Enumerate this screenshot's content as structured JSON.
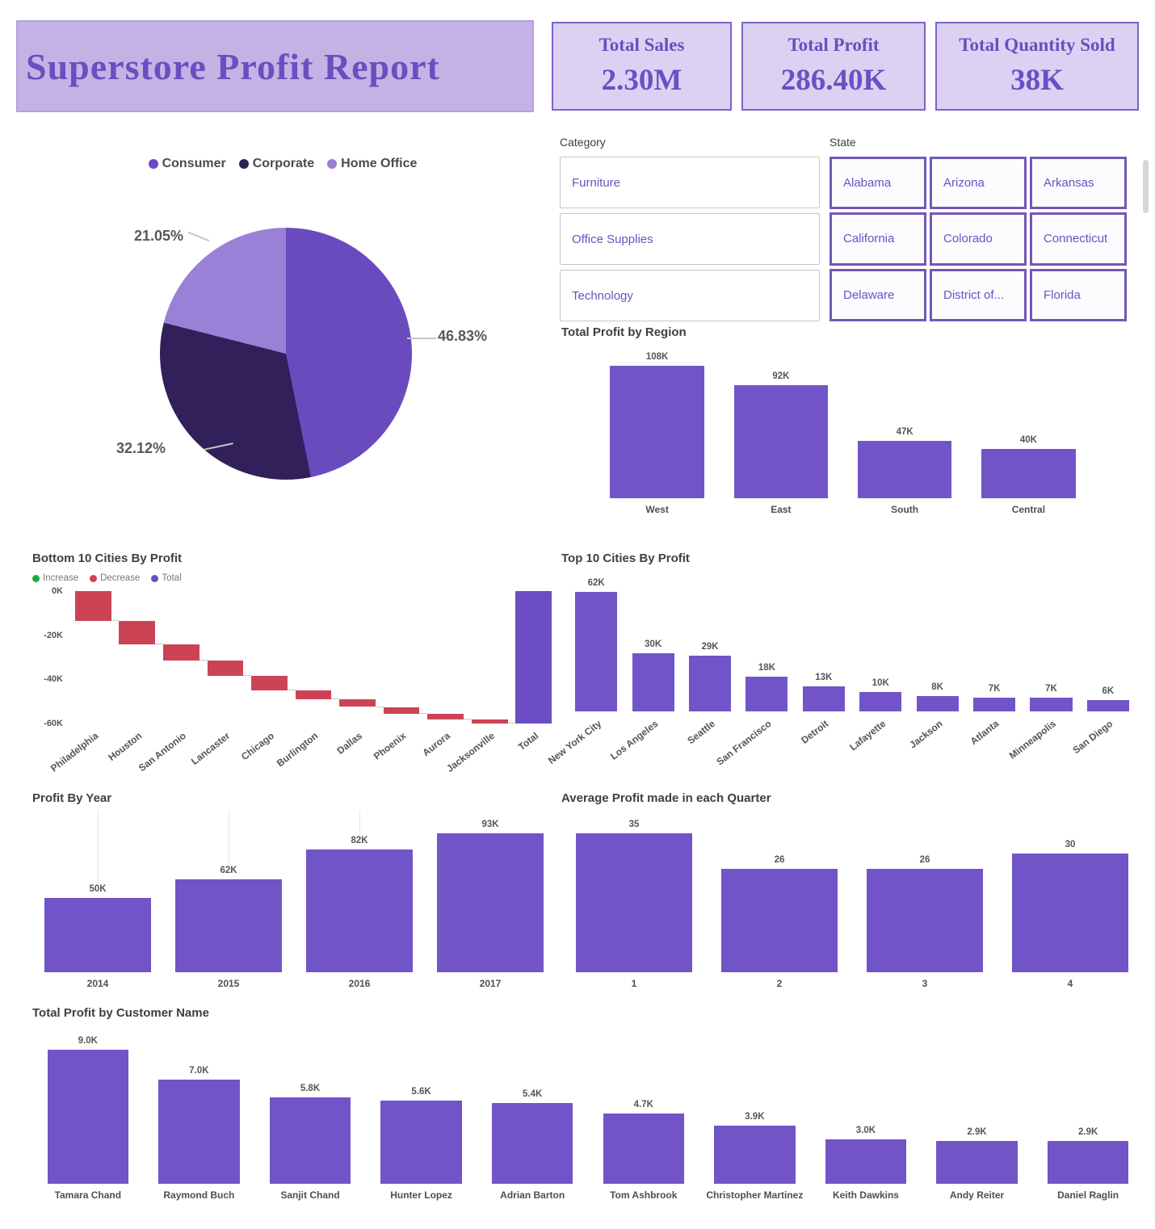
{
  "report": {
    "title": "Superstore Profit Report"
  },
  "kpis": [
    {
      "label": "Total Sales",
      "value": "2.30M"
    },
    {
      "label": "Total Profit",
      "value": "286.40K"
    },
    {
      "label": "Total Quantity Sold",
      "value": "38K"
    }
  ],
  "slicers": {
    "category": {
      "header": "Category",
      "items": [
        "Furniture",
        "Office Supplies",
        "Technology"
      ]
    },
    "state": {
      "header": "State",
      "items": [
        "Alabama",
        "Arizona",
        "Arkansas",
        "California",
        "Colorado",
        "Connecticut",
        "Delaware",
        "District of...",
        "Florida"
      ]
    }
  },
  "colors": {
    "accent_purple": "#7155C8",
    "banner_bg": "#C4B2E5",
    "kpi_bg": "#DCD1F2",
    "kpi_border": "#7A64C9",
    "pie_consumer": "#6A4BBE",
    "pie_corporate": "#31205A",
    "pie_home_office": "#9A80D6",
    "waterfall_increase": "#23A83C",
    "waterfall_decrease": "#CD4356",
    "waterfall_total": "#6B4EC4"
  },
  "chart_data": [
    {
      "id": "segment_pie",
      "type": "pie",
      "legend": [
        "Consumer",
        "Corporate",
        "Home Office"
      ],
      "values": [
        46.83,
        32.12,
        21.05
      ],
      "labels": [
        "46.83%",
        "32.12%",
        "21.05%"
      ],
      "colors": [
        "#6A4BBE",
        "#31205A",
        "#9A80D6"
      ],
      "legend_position": "top"
    },
    {
      "id": "region",
      "type": "bar",
      "title": "Total Profit by Region",
      "categories": [
        "West",
        "East",
        "South",
        "Central"
      ],
      "values": [
        108,
        92,
        47,
        40
      ],
      "value_labels": [
        "108K",
        "92K",
        "47K",
        "40K"
      ],
      "unit": "K",
      "bar_w": "76%",
      "color": "#7155C8"
    },
    {
      "id": "bottom10",
      "type": "waterfall",
      "title": "Bottom 10 Cities By Profit",
      "legend": [
        {
          "label": "Increase",
          "color": "#23A83C"
        },
        {
          "label": "Decrease",
          "color": "#CD4356"
        },
        {
          "label": "Total",
          "color": "#6B4EC4"
        }
      ],
      "categories": [
        "Philadelphia",
        "Houston",
        "San Antonio",
        "Lancaster",
        "Chicago",
        "Burlington",
        "Dallas",
        "Phoenix",
        "Aurora",
        "Jacksonville",
        "Total"
      ],
      "steps": [
        -13.5,
        -10.5,
        -7.5,
        -7.0,
        -6.5,
        -4.0,
        -3.5,
        -3.0,
        -2.5,
        -2.0
      ],
      "total": -60,
      "y_ticks": [
        "0K",
        "-20K",
        "-40K",
        "-60K"
      ],
      "y_min": -60,
      "unit": "K",
      "bar_w": "82%"
    },
    {
      "id": "top10",
      "type": "bar",
      "title": "Top 10 Cities By Profit",
      "categories": [
        "New York City",
        "Los Angeles",
        "Seattle",
        "San Francisco",
        "Detroit",
        "Lafayette",
        "Jackson",
        "Atlanta",
        "Minneapolis",
        "San Diego"
      ],
      "values": [
        62,
        30,
        29,
        18,
        13,
        10,
        8,
        7,
        7,
        6
      ],
      "value_labels": [
        "62K",
        "30K",
        "29K",
        "18K",
        "13K",
        "10K",
        "8K",
        "7K",
        "7K",
        "6K"
      ],
      "unit": "K",
      "rotated_labels": true,
      "bar_w": "74%",
      "color": "#7155C8"
    },
    {
      "id": "year",
      "type": "bar",
      "title": "Profit By Year",
      "categories": [
        "2014",
        "2015",
        "2016",
        "2017"
      ],
      "values": [
        50,
        62,
        82,
        93
      ],
      "value_labels": [
        "50K",
        "62K",
        "82K",
        "93K"
      ],
      "unit": "K",
      "guides": [
        0,
        1,
        2
      ],
      "bar_w": "82%",
      "color": "#7155C8"
    },
    {
      "id": "quarter",
      "type": "bar",
      "title": "Average Profit made in each Quarter",
      "categories": [
        "1",
        "2",
        "3",
        "4"
      ],
      "values": [
        35,
        26,
        26,
        30
      ],
      "value_labels": [
        "35",
        "26",
        "26",
        "30"
      ],
      "bar_w": "80%",
      "color": "#7155C8"
    },
    {
      "id": "customer",
      "type": "bar",
      "title": "Total Profit by Customer Name",
      "categories": [
        "Tamara Chand",
        "Raymond Buch",
        "Sanjit Chand",
        "Hunter Lopez",
        "Adrian Barton",
        "Tom Ashbrook",
        "Christopher Martinez",
        "Keith Dawkins",
        "Andy Reiter",
        "Daniel Raglin"
      ],
      "values": [
        9.0,
        7.0,
        5.8,
        5.6,
        5.4,
        4.7,
        3.9,
        3.0,
        2.9,
        2.9
      ],
      "value_labels": [
        "9.0K",
        "7.0K",
        "5.8K",
        "5.6K",
        "5.4K",
        "4.7K",
        "3.9K",
        "3.0K",
        "2.9K",
        "2.9K"
      ],
      "unit": "K",
      "bar_w": "73%",
      "color": "#7155C8"
    }
  ]
}
